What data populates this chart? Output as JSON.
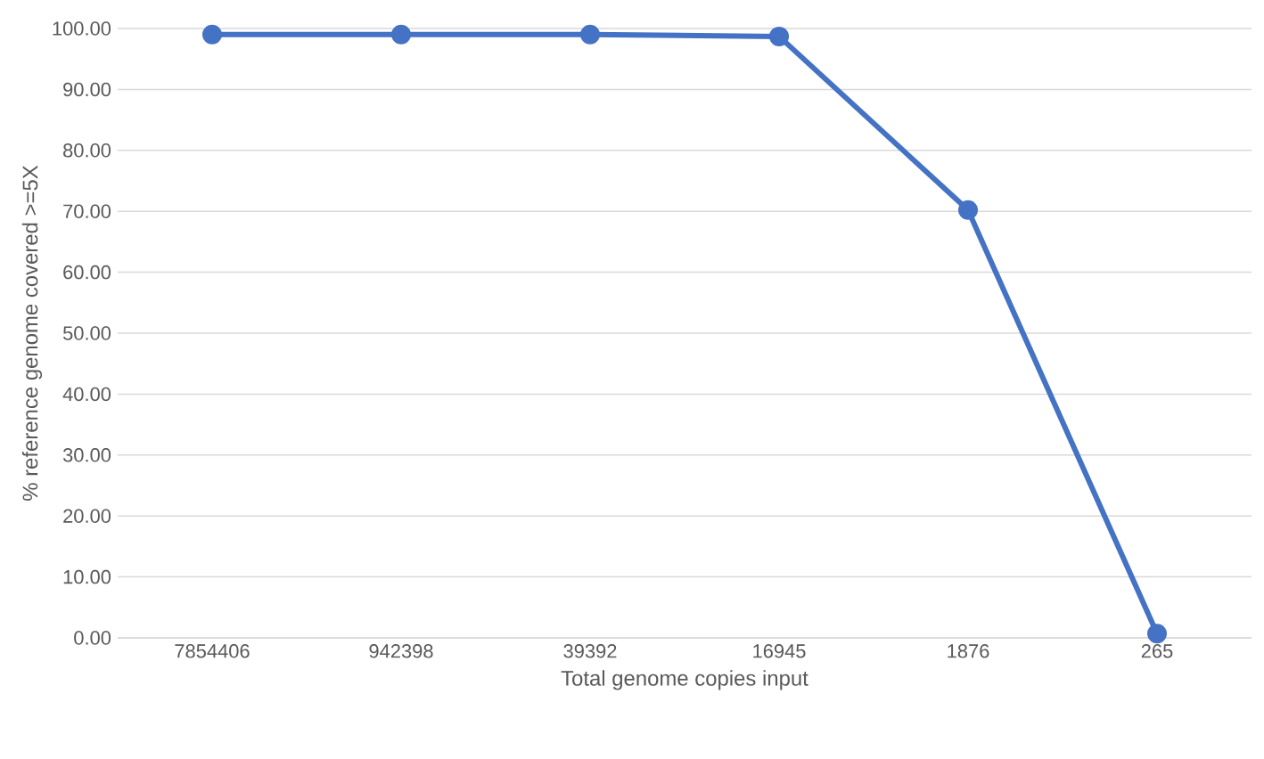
{
  "chart_data": {
    "type": "line",
    "xlabel": "Total genome copies input",
    "ylabel": "% reference genome covered >=5X",
    "categories": [
      "7854406",
      "942398",
      "39392",
      "16945",
      "1876",
      "265"
    ],
    "values": [
      99.0,
      99.0,
      99.0,
      98.7,
      70.2,
      0.7
    ],
    "color": "#4472c4",
    "marker": "circle",
    "line_style": "solid",
    "grid": "y",
    "ylim": [
      0,
      100
    ],
    "yticks": [
      {
        "value": 0,
        "label": "0.00"
      },
      {
        "value": 10,
        "label": "10.00"
      },
      {
        "value": 20,
        "label": "20.00"
      },
      {
        "value": 30,
        "label": "30.00"
      },
      {
        "value": 40,
        "label": "40.00"
      },
      {
        "value": 50,
        "label": "50.00"
      },
      {
        "value": 60,
        "label": "60.00"
      },
      {
        "value": 70,
        "label": "70.00"
      },
      {
        "value": 80,
        "label": "80.00"
      },
      {
        "value": 90,
        "label": "90.00"
      },
      {
        "value": 100,
        "label": "100.00"
      }
    ]
  }
}
